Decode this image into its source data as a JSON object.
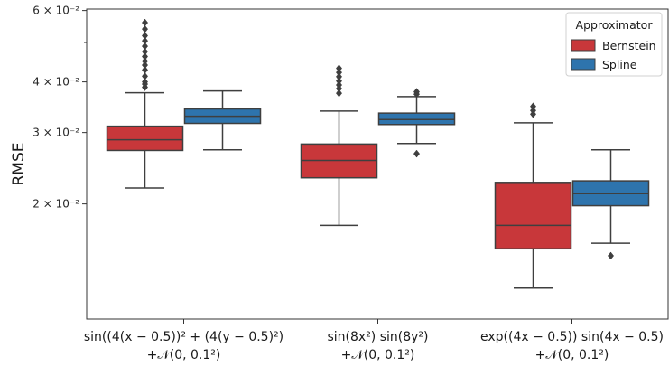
{
  "chart_data": {
    "type": "box",
    "ylabel": "RMSE",
    "yscale": "log",
    "ylim": [
      0.0104,
      0.0605
    ],
    "yticks": [
      {
        "value": 0.02,
        "label": "2 × 10⁻²"
      },
      {
        "value": 0.03,
        "label": "3 × 10⁻²"
      },
      {
        "value": 0.04,
        "label": "4 × 10⁻²"
      },
      {
        "value": 0.06,
        "label": "6 × 10⁻²"
      }
    ],
    "categories": [
      {
        "line1": "sin((4(x − 0.5))² + (4(y − 0.5)²)",
        "line2": "+𝒩(0, 0.1²)"
      },
      {
        "line1": "sin(8x²) sin(8y²)",
        "line2": "+𝒩(0, 0.1²)"
      },
      {
        "line1": "exp((4x − 0.5)) sin(4x − 0.5)",
        "line2": "+𝒩(0, 0.1²)"
      }
    ],
    "legend": {
      "title": "Approximator",
      "position": "top-right"
    },
    "series": [
      {
        "name": "Bernstein",
        "color": "#c8373a",
        "boxes": [
          {
            "whislo": 0.0219,
            "q1": 0.0271,
            "med": 0.0288,
            "q3": 0.0311,
            "whishi": 0.0376,
            "fliers": [
              0.0388,
              0.0395,
              0.04,
              0.0413,
              0.0428,
              0.044,
              0.045,
              0.0462,
              0.0475,
              0.049,
              0.0505,
              0.052,
              0.054,
              0.056
            ]
          },
          {
            "whislo": 0.0177,
            "q1": 0.0232,
            "med": 0.0256,
            "q3": 0.0281,
            "whishi": 0.0339,
            "fliers": [
              0.0375,
              0.0385,
              0.0393,
              0.0402,
              0.0412,
              0.0422,
              0.0432
            ]
          },
          {
            "whislo": 0.0124,
            "q1": 0.0155,
            "med": 0.0177,
            "q3": 0.0226,
            "whishi": 0.0317,
            "fliers": [
              0.0333,
              0.034,
              0.0348
            ]
          }
        ]
      },
      {
        "name": "Spline",
        "color": "#2e74ad",
        "boxes": [
          {
            "whislo": 0.0272,
            "q1": 0.0316,
            "med": 0.0329,
            "q3": 0.0343,
            "whishi": 0.038,
            "fliers": []
          },
          {
            "whislo": 0.0282,
            "q1": 0.0314,
            "med": 0.0323,
            "q3": 0.0335,
            "whishi": 0.0368,
            "fliers": [
              0.0266,
              0.0373,
              0.0378
            ]
          },
          {
            "whislo": 0.016,
            "q1": 0.0198,
            "med": 0.0212,
            "q3": 0.0228,
            "whishi": 0.0272,
            "fliers": [
              0.0149
            ]
          }
        ]
      }
    ]
  }
}
